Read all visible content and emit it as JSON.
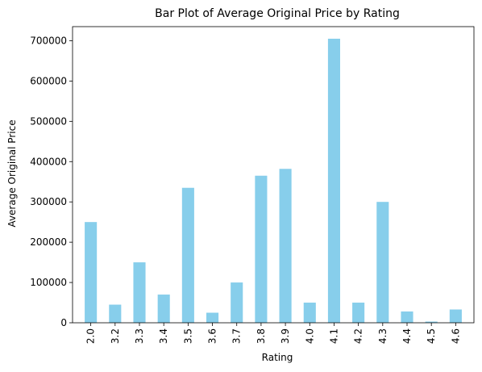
{
  "chart_data": {
    "type": "bar",
    "title": "Bar Plot of Average Original Price by Rating",
    "xlabel": "Rating",
    "ylabel": "Average Original Price",
    "categories": [
      "2.0",
      "3.2",
      "3.3",
      "3.4",
      "3.5",
      "3.6",
      "3.7",
      "3.8",
      "3.9",
      "4.0",
      "4.1",
      "4.2",
      "4.3",
      "4.4",
      "4.5",
      "4.6"
    ],
    "values": [
      250000,
      45000,
      150000,
      70000,
      335000,
      25000,
      100000,
      365000,
      382000,
      50000,
      705000,
      50000,
      300000,
      28000,
      3000,
      33000
    ],
    "ylim": [
      0,
      735000
    ],
    "yticks": [
      0,
      100000,
      200000,
      300000,
      400000,
      500000,
      600000,
      700000
    ],
    "ytick_labels": [
      "0",
      "100000",
      "200000",
      "300000",
      "400000",
      "500000",
      "600000",
      "700000"
    ],
    "bar_color": "#87CEEB",
    "grid": false,
    "legend": false
  }
}
